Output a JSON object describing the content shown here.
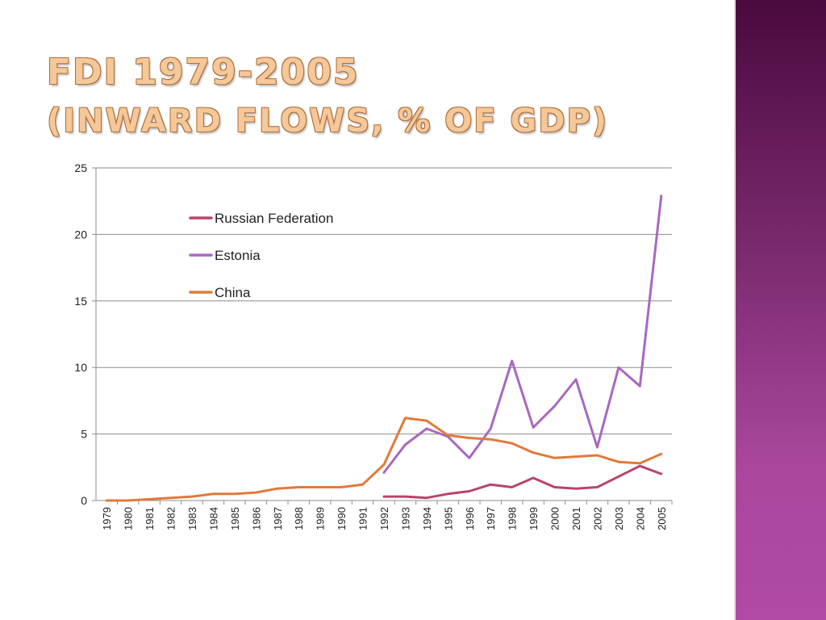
{
  "slide": {
    "title_line1": "FDI 1979-2005",
    "title_line2": "(Inward flows, % of GDP)",
    "colors": {
      "title": "#f5c89a",
      "sidebar": "#7a2a6e"
    }
  },
  "chart_data": {
    "type": "line",
    "title": "FDI 1979-2005 (Inward flows, % of GDP)",
    "xlabel": "",
    "ylabel": "",
    "ylim": [
      0,
      25
    ],
    "yticks": [
      0,
      5,
      10,
      15,
      20,
      25
    ],
    "grid": true,
    "legend_position": "top-center",
    "categories": [
      "1979",
      "1980",
      "1981",
      "1982",
      "1983",
      "1984",
      "1985",
      "1986",
      "1987",
      "1988",
      "1989",
      "1990",
      "1991",
      "1992",
      "1993",
      "1994",
      "1995",
      "1996",
      "1997",
      "1998",
      "1999",
      "2000",
      "2001",
      "2002",
      "2003",
      "2004",
      "2005"
    ],
    "series": [
      {
        "name": "Russian Federation",
        "color": "#b8446e",
        "values": [
          null,
          null,
          null,
          null,
          null,
          null,
          null,
          null,
          null,
          null,
          null,
          null,
          null,
          0.3,
          0.3,
          0.2,
          0.5,
          0.7,
          1.2,
          1.0,
          1.7,
          1.0,
          0.9,
          1.0,
          1.8,
          2.6,
          2.0
        ]
      },
      {
        "name": "Estonia",
        "color": "#a868c0",
        "values": [
          null,
          null,
          null,
          null,
          null,
          null,
          null,
          null,
          null,
          null,
          null,
          null,
          null,
          2.1,
          4.2,
          5.4,
          4.8,
          3.2,
          5.4,
          10.5,
          5.5,
          7.1,
          9.1,
          4.0,
          10.0,
          8.6,
          22.9
        ]
      },
      {
        "name": "China",
        "color": "#e07a3a",
        "values": [
          0,
          0,
          0.1,
          0.2,
          0.3,
          0.5,
          0.5,
          0.6,
          0.9,
          1.0,
          1.0,
          1.0,
          1.2,
          2.7,
          6.2,
          6.0,
          4.9,
          4.7,
          4.6,
          4.3,
          3.6,
          3.2,
          3.3,
          3.4,
          2.9,
          2.8,
          3.5
        ]
      }
    ]
  }
}
